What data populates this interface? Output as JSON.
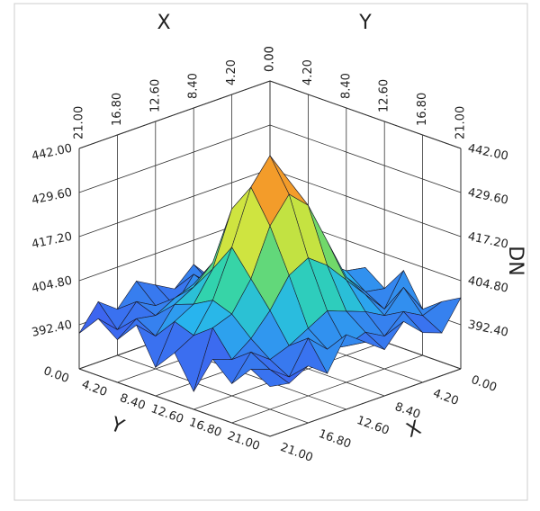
{
  "chart_data": {
    "type": "surface",
    "x_label": "X",
    "y_label": "Y",
    "z_label": "DN",
    "x": [
      0,
      2.1,
      4.2,
      6.3,
      8.4,
      10.5,
      12.6,
      14.7,
      16.8,
      18.9,
      21
    ],
    "y": [
      0,
      2.1,
      4.2,
      6.3,
      8.4,
      10.5,
      12.6,
      14.7,
      16.8,
      18.9,
      21
    ],
    "z": [
      [
        398,
        393,
        401,
        394,
        396,
        399,
        395,
        402,
        393,
        397,
        400
      ],
      [
        394,
        399,
        392,
        397,
        398,
        400,
        396,
        393,
        401,
        395,
        392
      ],
      [
        397,
        393,
        398,
        401,
        403,
        404,
        402,
        399,
        395,
        398,
        394
      ],
      [
        392,
        396,
        399,
        406,
        412,
        417,
        414,
        405,
        398,
        393,
        399
      ],
      [
        398,
        394,
        401,
        409,
        423,
        431,
        426,
        411,
        400,
        396,
        393
      ],
      [
        393,
        399,
        397,
        404,
        428,
        440,
        431,
        415,
        402,
        394,
        397
      ],
      [
        396,
        392,
        400,
        408,
        425,
        433,
        424,
        412,
        399,
        395,
        401
      ],
      [
        399,
        394,
        398,
        403,
        410,
        418,
        411,
        404,
        396,
        400,
        392
      ],
      [
        393,
        397,
        395,
        400,
        402,
        405,
        403,
        398,
        394,
        391,
        396
      ],
      [
        397,
        391,
        396,
        393,
        399,
        397,
        401,
        394,
        398,
        395,
        393
      ],
      [
        390,
        396,
        392,
        398,
        388,
        394,
        385,
        396,
        391,
        397,
        394
      ]
    ],
    "xlim": [
      0,
      21
    ],
    "ylim": [
      0,
      21
    ],
    "zlim": [
      380,
      442
    ],
    "xticks": [
      {
        "value": 0,
        "label": "0.00"
      },
      {
        "value": 4.2,
        "label": "4.20"
      },
      {
        "value": 8.4,
        "label": "8.40"
      },
      {
        "value": 12.6,
        "label": "12.60"
      },
      {
        "value": 16.8,
        "label": "16.80"
      },
      {
        "value": 21,
        "label": "21.00"
      }
    ],
    "yticks": [
      {
        "value": 0,
        "label": "0.00"
      },
      {
        "value": 4.2,
        "label": "4.20"
      },
      {
        "value": 8.4,
        "label": "8.40"
      },
      {
        "value": 12.6,
        "label": "12.60"
      },
      {
        "value": 16.8,
        "label": "16.80"
      },
      {
        "value": 21,
        "label": "21.00"
      }
    ],
    "zticks": [
      {
        "value": 392.4,
        "label": "392.40"
      },
      {
        "value": 404.8,
        "label": "404.80"
      },
      {
        "value": 417.2,
        "label": "417.20"
      },
      {
        "value": 429.6,
        "label": "429.60"
      },
      {
        "value": 442,
        "label": "442.00"
      }
    ],
    "colormap": [
      "#3a22c8",
      "#3f5ff0",
      "#28b4ee",
      "#2fd3b0",
      "#8fdc4a",
      "#f2e83a",
      "#f39b2a",
      "#e0442a"
    ],
    "grid": true
  }
}
